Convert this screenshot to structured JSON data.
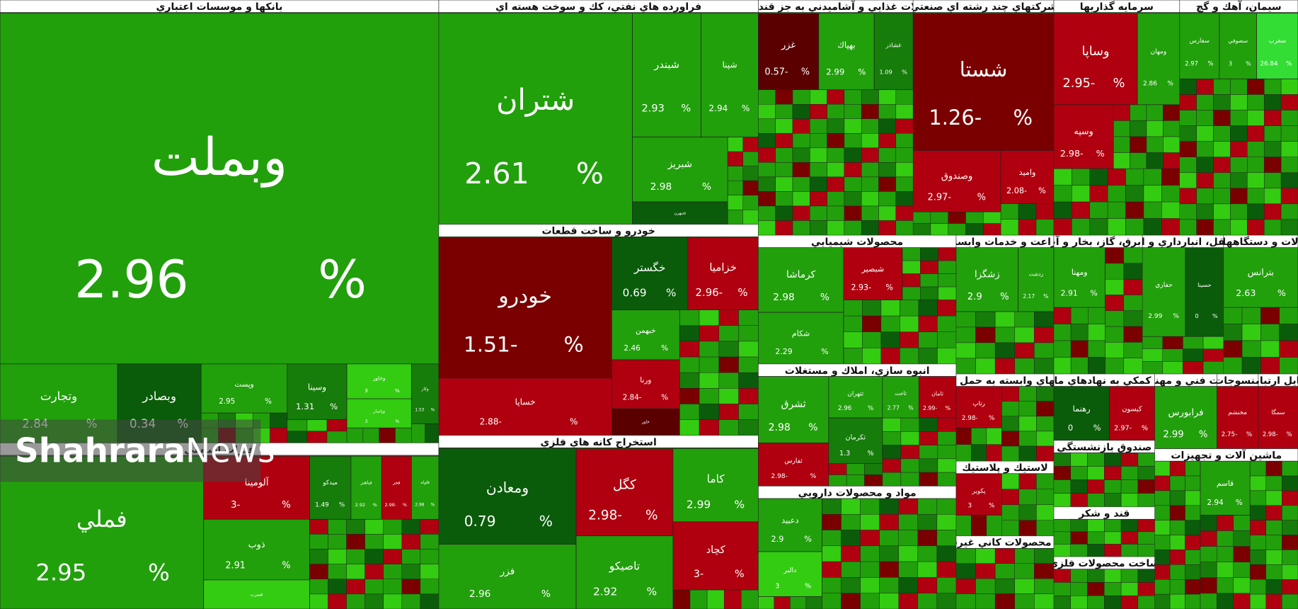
{
  "percent_sign": "%",
  "watermark": {
    "bold": "Shahrara",
    "light": "News"
  },
  "sectors": [
    {
      "title": "بانكها و موسسات اعتباري",
      "tiles": [
        {
          "name": "وبملت",
          "change": "2.96",
          "color": "#21a00b"
        },
        {
          "name": "وتجارت",
          "change": "2.84",
          "color": "#21a00b"
        },
        {
          "name": "وبصادر",
          "change": "0.34",
          "color": "#0a5c0a"
        },
        {
          "name": "وپست",
          "change": "2.95",
          "color": "#21a00b"
        },
        {
          "name": "وسينا",
          "change": "1.31",
          "color": "#167c0a"
        },
        {
          "name": "وخاور",
          "change": "3",
          "color": "#33cc11"
        },
        {
          "name": "وپاسار",
          "change": "3",
          "color": "#33cc11"
        },
        {
          "name": "وكار",
          "change": "1.53",
          "color": "#167c0a"
        }
      ]
    },
    {
      "title": "فلزات اساسي",
      "tiles": [
        {
          "name": "فملي",
          "change": "2.95",
          "color": "#21a00b"
        },
        {
          "name": "آلومينا",
          "change": "3-",
          "color": "#b0000f"
        },
        {
          "name": "ميدكو",
          "change": "1.49",
          "color": "#167c0a"
        },
        {
          "name": "فباهنر",
          "change": "2.92",
          "color": "#21a00b"
        },
        {
          "name": "فجر",
          "change": "2.98-",
          "color": "#b0000f"
        },
        {
          "name": "فلوله",
          "change": "2.98",
          "color": "#21a00b"
        },
        {
          "name": "ذوب",
          "change": "2.91",
          "color": "#21a00b"
        },
        {
          "name": "فسرب",
          "color": "#33cc11"
        }
      ]
    },
    {
      "title": "فراورده هاي نفتي، كك و سوخت هسته اي",
      "tiles": [
        {
          "name": "شتران",
          "change": "2.61",
          "color": "#21a00b"
        },
        {
          "name": "شبندر",
          "change": "2.93",
          "color": "#21a00b"
        },
        {
          "name": "شپنا",
          "change": "2.94",
          "color": "#21a00b"
        },
        {
          "name": "شبريز",
          "change": "2.98",
          "color": "#21a00b"
        },
        {
          "name": "شبهرن",
          "color": "#0a5c0a"
        }
      ]
    },
    {
      "title": "خودرو و ساخت قطعات",
      "tiles": [
        {
          "name": "خودرو",
          "change": "1.51-",
          "color": "#7a0000"
        },
        {
          "name": "خساپا",
          "change": "2.88-",
          "color": "#b0000f"
        },
        {
          "name": "خگستر",
          "change": "0.69",
          "color": "#0a5c0a"
        },
        {
          "name": "خزاميا",
          "change": "2.96-",
          "color": "#b0000f"
        },
        {
          "name": "خبهمن",
          "change": "2.46",
          "color": "#21a00b"
        },
        {
          "name": "ورنا",
          "change": "2.84-",
          "color": "#b0000f"
        },
        {
          "name": "خاور",
          "color": "#5a0000"
        }
      ]
    },
    {
      "title": "استخراج كانه هاي فلزي",
      "tiles": [
        {
          "name": "ومعادن",
          "change": "0.79",
          "color": "#0a5c0a"
        },
        {
          "name": "كگل",
          "change": "2.98-",
          "color": "#b0000f"
        },
        {
          "name": "كاما",
          "change": "2.99",
          "color": "#21a00b"
        },
        {
          "name": "كچاد",
          "change": "3-",
          "color": "#b0000f"
        },
        {
          "name": "فزر",
          "change": "2.96",
          "color": "#21a00b"
        },
        {
          "name": "تاصيكو",
          "change": "2.92",
          "color": "#21a00b"
        }
      ]
    },
    {
      "title": "محصولات غذايي و آشاميدني به جز قند و شكر",
      "tiles": [
        {
          "name": "غزر",
          "change": "0.57-",
          "color": "#5a0000"
        },
        {
          "name": "بهپاك",
          "change": "2.99",
          "color": "#21a00b"
        },
        {
          "name": "غشاذر",
          "change": "1.09",
          "color": "#167c0a"
        }
      ]
    },
    {
      "title": "شركتهاي چند رشته اي صنعتي",
      "tiles": [
        {
          "name": "شستا",
          "change": "1.26-",
          "color": "#7a0000"
        },
        {
          "name": "وصندوق",
          "change": "2.97-",
          "color": "#b0000f"
        },
        {
          "name": "واميد",
          "change": "2.08-",
          "color": "#b0000f"
        }
      ]
    },
    {
      "title": "سرمايه گذاريها",
      "tiles": [
        {
          "name": "وساپا",
          "change": "2.95-",
          "color": "#b0000f"
        },
        {
          "name": "ومهان",
          "change": "2.86",
          "color": "#21a00b"
        },
        {
          "name": "وسپه",
          "change": "2.98-",
          "color": "#b0000f"
        }
      ]
    },
    {
      "title": "سيمان، آهك و گچ",
      "tiles": [
        {
          "name": "سفارس",
          "change": "2.97",
          "color": "#21a00b"
        },
        {
          "name": "سصوفي",
          "change": "3",
          "color": "#21a00b"
        },
        {
          "name": "سغرب",
          "change": "26.84",
          "color": "#33dd33"
        }
      ]
    },
    {
      "title": "محصولات شيميايي",
      "tiles": [
        {
          "name": "كرماشا",
          "change": "2.98",
          "color": "#21a00b"
        },
        {
          "name": "شبصير",
          "change": "2.93-",
          "color": "#b0000f"
        },
        {
          "name": "شكام",
          "change": "2.29",
          "color": "#21a00b"
        }
      ]
    },
    {
      "title": "انبوه سازي، املاك و مستغلات",
      "tiles": [
        {
          "name": "ثشرق",
          "change": "2.98",
          "color": "#21a00b"
        },
        {
          "name": "ثتهران",
          "change": "2.96",
          "color": "#21a00b"
        },
        {
          "name": "ثاخت",
          "change": "2.77",
          "color": "#21a00b"
        },
        {
          "name": "ثامان",
          "change": "2.99-",
          "color": "#b0000f"
        },
        {
          "name": "ثفارس",
          "change": "2.98-",
          "color": "#b0000f"
        },
        {
          "name": "ثكرمان",
          "change": "1.3",
          "color": "#167c0a"
        }
      ]
    },
    {
      "title": "مواد و محصولات دارويي",
      "tiles": [
        {
          "name": "دعبيد",
          "change": "2.9",
          "color": "#21a00b"
        },
        {
          "name": "دالبر",
          "change": "3",
          "color": "#33cc11"
        }
      ]
    },
    {
      "title": "زراعت و خدمات وابسته",
      "tiles": [
        {
          "name": "زشگزا",
          "change": "2.9",
          "color": "#21a00b"
        },
        {
          "name": "زدشت",
          "change": "2.17",
          "color": "#21a00b"
        }
      ]
    },
    {
      "title": "فعاليتهاي وابسته به حمل و نقل",
      "tiles": [
        {
          "name": "رتاپ",
          "change": "2.98-",
          "color": "#b0000f"
        }
      ]
    },
    {
      "title": "لاستيك و پلاستيك",
      "tiles": [
        {
          "name": "پكوير",
          "change": "3",
          "color": "#b0000f"
        }
      ]
    },
    {
      "title": "ساير محصولات كاني غيرفلزي",
      "tiles": []
    },
    {
      "title": "عرضه برق، گاز، بخار و آب گرم",
      "tiles": [
        {
          "name": "ومهنا",
          "change": "2.91",
          "color": "#21a00b"
        }
      ]
    },
    {
      "title": "حمل و نقل، انبارداري و ارتباطات",
      "tiles": [
        {
          "name": "حفاري",
          "change": "2.99",
          "color": "#21a00b"
        },
        {
          "name": "حسينا",
          "change": "0",
          "color": "#0a5c0a"
        }
      ]
    },
    {
      "title": "ماشين آلات و دستگاههاي برقي",
      "tiles": [
        {
          "name": "بترانس",
          "change": "2.63",
          "color": "#21a00b"
        }
      ]
    },
    {
      "title": "فعاليتهاي كمكي به نهادهاي مالي واسط",
      "tiles": [
        {
          "name": "رهنما",
          "change": "0",
          "color": "#0a5c0a"
        },
        {
          "name": "كيسون",
          "change": "2.97-",
          "color": "#b0000f"
        }
      ]
    },
    {
      "title": "خدمات فني و مهندسي",
      "tiles": [
        {
          "name": "فرابورس",
          "change": "2.99",
          "color": "#21a00b"
        }
      ]
    },
    {
      "title": "منسوجات",
      "tiles": [
        {
          "name": "مخنشم",
          "change": "2.75-",
          "color": "#b0000f"
        }
      ]
    },
    {
      "title": "وسايل ارتباطي",
      "tiles": [
        {
          "name": "سمگا",
          "change": "2.98-",
          "color": "#b0000f"
        }
      ]
    },
    {
      "title": "صندوق بازنشستگي",
      "tiles": []
    },
    {
      "title": "قند و شكر",
      "tiles": []
    },
    {
      "title": "ساخت محصولات فلزي",
      "tiles": []
    },
    {
      "title": "ماشين آلات و تجهيزات",
      "tiles": [
        {
          "name": "قاسم",
          "change": "2.94",
          "color": "#21a00b"
        }
      ]
    }
  ]
}
